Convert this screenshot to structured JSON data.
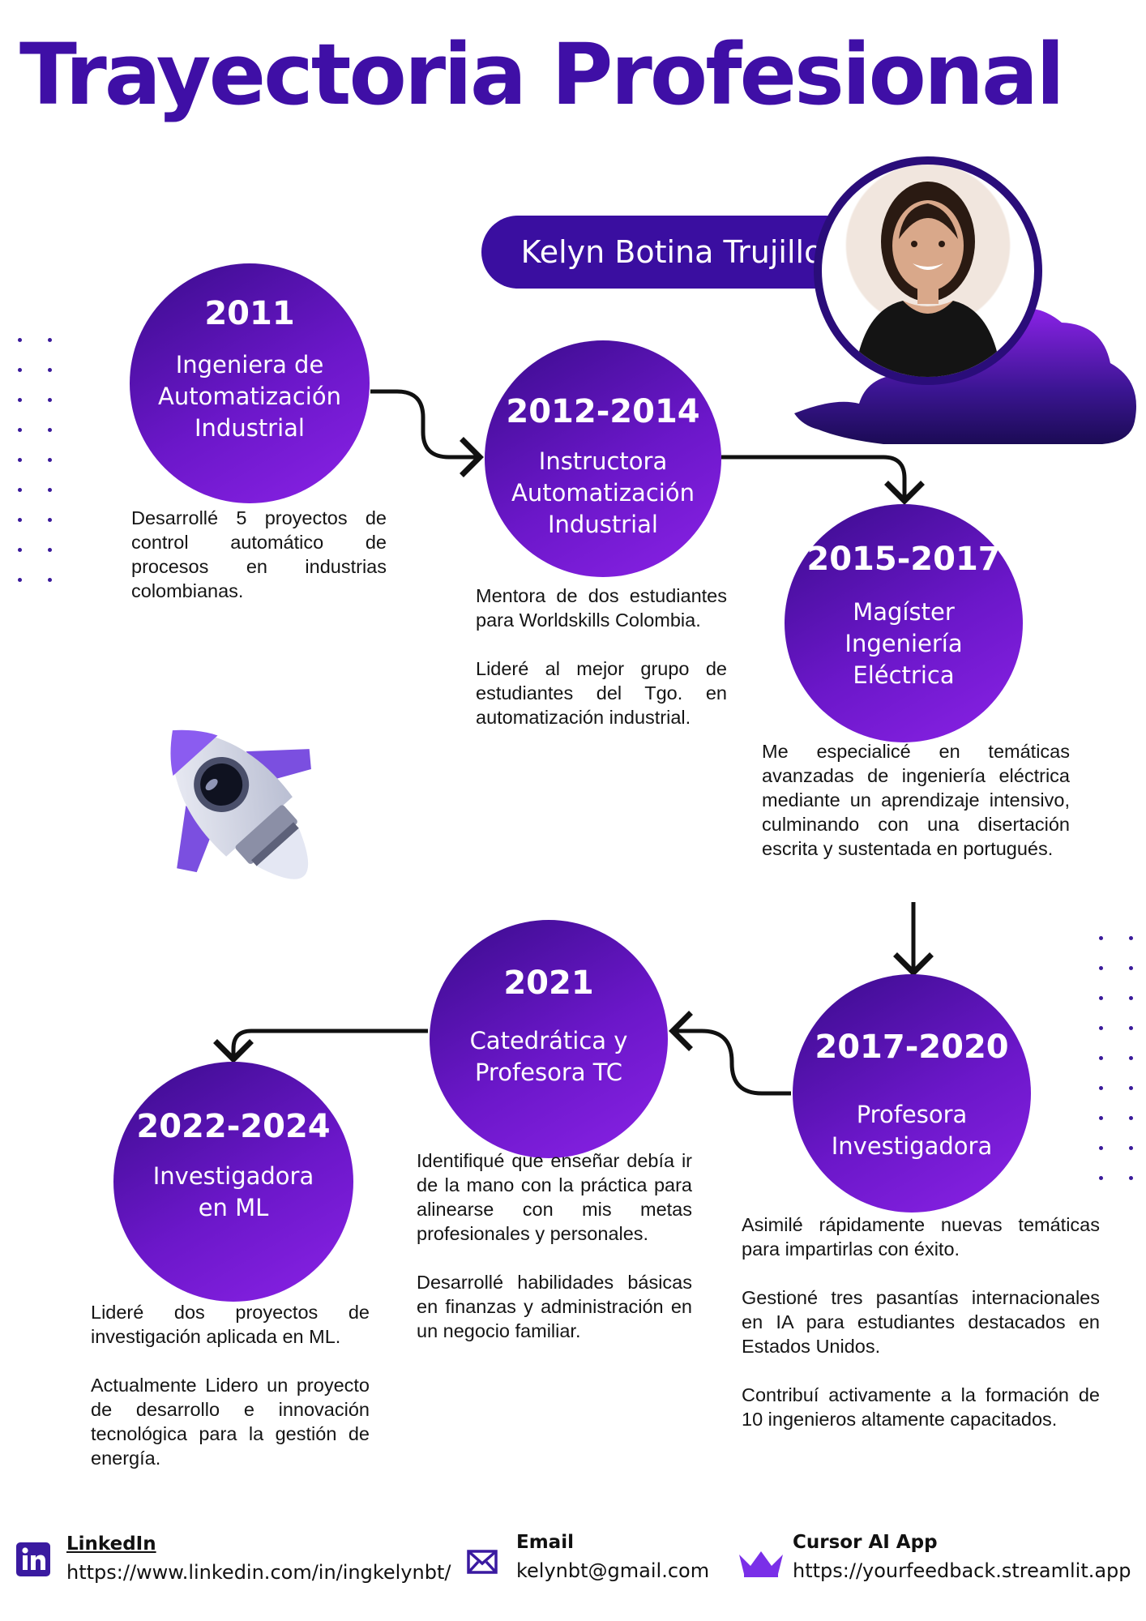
{
  "title": "Trayectoria Profesional",
  "person_name": "Kelyn Botina Trujillo",
  "accent_color": "#3f0fa6",
  "circle_gradient": [
    "#3a0c8c",
    "#8a22e6"
  ],
  "timeline": [
    {
      "year": "2011",
      "role": "Ingeniera de\nAutomatización\nIndustrial",
      "details": [
        "Desarrollé 5 proyectos de control automático de procesos en industrias colombianas."
      ]
    },
    {
      "year": "2012-2014",
      "role": "Instructora\nAutomatización\nIndustrial",
      "details": [
        "Mentora de dos estudiantes para Worldskills Colombia.",
        "Lideré al mejor grupo de estudiantes del Tgo. en automatización industrial."
      ]
    },
    {
      "year": "2015-2017",
      "role": "Magíster\nIngeniería\nEléctrica",
      "details": [
        "Me especialicé en temáticas avanzadas de ingeniería eléctrica mediante un aprendizaje intensivo, culminando con una disertación escrita y sustentada en portugués."
      ]
    },
    {
      "year": "2017-2020",
      "role": "Profesora\nInvestigadora",
      "details": [
        "Asimilé rápidamente nuevas temáticas para impartirlas con éxito.",
        "Gestioné tres pasantías internacionales en IA para estudiantes destacados en Estados Unidos.",
        "Contribuí activamente a la formación de 10 ingenieros altamente capacitados."
      ]
    },
    {
      "year": "2021",
      "role": "Catedrática y\nProfesora TC",
      "details": [
        "Identifiqué que enseñar debía ir de la mano con la práctica para alinearse con mis metas profesionales y personales.",
        "Desarrollé habilidades básicas en finanzas y administración en un negocio familiar."
      ]
    },
    {
      "year": "2022-2024",
      "role": "Investigadora\nen ML",
      "details": [
        "Lideré dos proyectos de investigación aplicada en ML.",
        "Actualmente Lidero un proyecto de desarrollo e innovación tecnológica para la gestión de energía."
      ]
    }
  ],
  "contacts": [
    {
      "label": "LinkedIn",
      "value": "https://www.linkedin.com/in/ingkelynbt/",
      "icon": "linkedin-icon"
    },
    {
      "label": "Email",
      "value": "kelynbt@gmail.com",
      "icon": "envelope-icon"
    },
    {
      "label": "Cursor AI App",
      "value": "https://yourfeedback.streamlit.app",
      "icon": "crown-icon"
    }
  ]
}
